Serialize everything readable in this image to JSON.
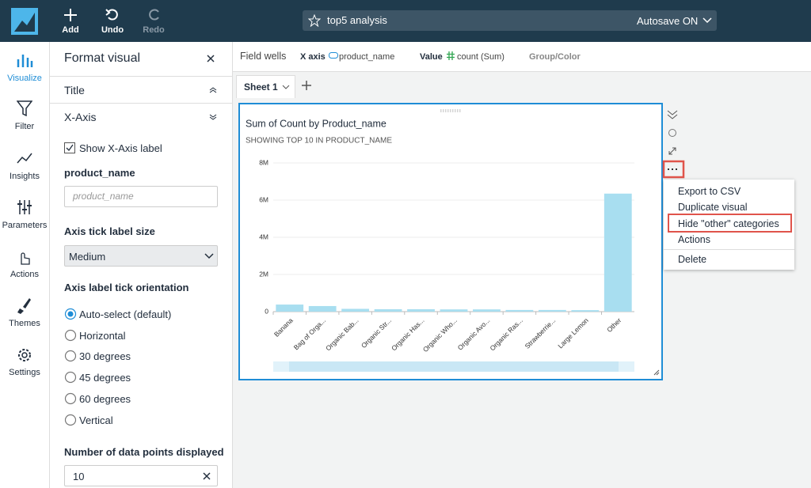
{
  "top_bar": {
    "buttons": [
      "Add",
      "Undo",
      "Redo"
    ],
    "analysis_name": "top5 analysis",
    "autosave": "Autosave ON"
  },
  "nav": [
    "Visualize",
    "Filter",
    "Insights",
    "Parameters",
    "Actions",
    "Themes",
    "Settings"
  ],
  "format_panel": {
    "title": "Format visual",
    "sections": [
      "Title",
      "X-Axis"
    ],
    "show_label": "Show X-Axis label",
    "field_label": "product_name",
    "field_placeholder": "product_name",
    "tick_size_label": "Axis tick label size",
    "tick_size": "Medium",
    "orientation_label": "Axis label tick orientation",
    "orientation_options": [
      "Auto-select (default)",
      "Horizontal",
      "30 degrees",
      "45 degrees",
      "60 degrees",
      "Vertical"
    ],
    "data_points_label": "Number of data points displayed",
    "data_points": 10
  },
  "field_wells": {
    "label": "Field wells",
    "x_axis_label": "X axis",
    "x_axis_field": "product_name",
    "value_label": "Value",
    "value_field": "count (Sum)",
    "group_label": "Group/Color"
  },
  "sheet_tab": "Sheet 1",
  "menu": [
    "Export to CSV",
    "Duplicate visual",
    "Hide \"other\" categories",
    "Actions",
    "Delete"
  ],
  "chart_data": {
    "type": "bar",
    "title": "Sum of Count by Product_name",
    "subtitle": "SHOWING TOP 10 IN PRODUCT_NAME",
    "categories": [
      "Banana",
      "Bag of Orga...",
      "Organic Bab...",
      "Organic Str...",
      "Organic Has...",
      "Organic Who...",
      "Organic Avo...",
      "Organic Ras...",
      "Strawberrie...",
      "Large Lemon",
      "Other"
    ],
    "values": [
      380000,
      300000,
      150000,
      130000,
      130000,
      120000,
      120000,
      90000,
      90000,
      80000,
      6350000
    ],
    "color": "#a8def0",
    "ylim": [
      0,
      8000000
    ],
    "yticks": [
      0,
      {
        "value": 2000000,
        "label": "2M"
      },
      {
        "value": 4000000,
        "label": "4M"
      },
      {
        "value": 6000000,
        "label": "6M"
      },
      {
        "value": 8000000,
        "label": "8M"
      }
    ]
  }
}
